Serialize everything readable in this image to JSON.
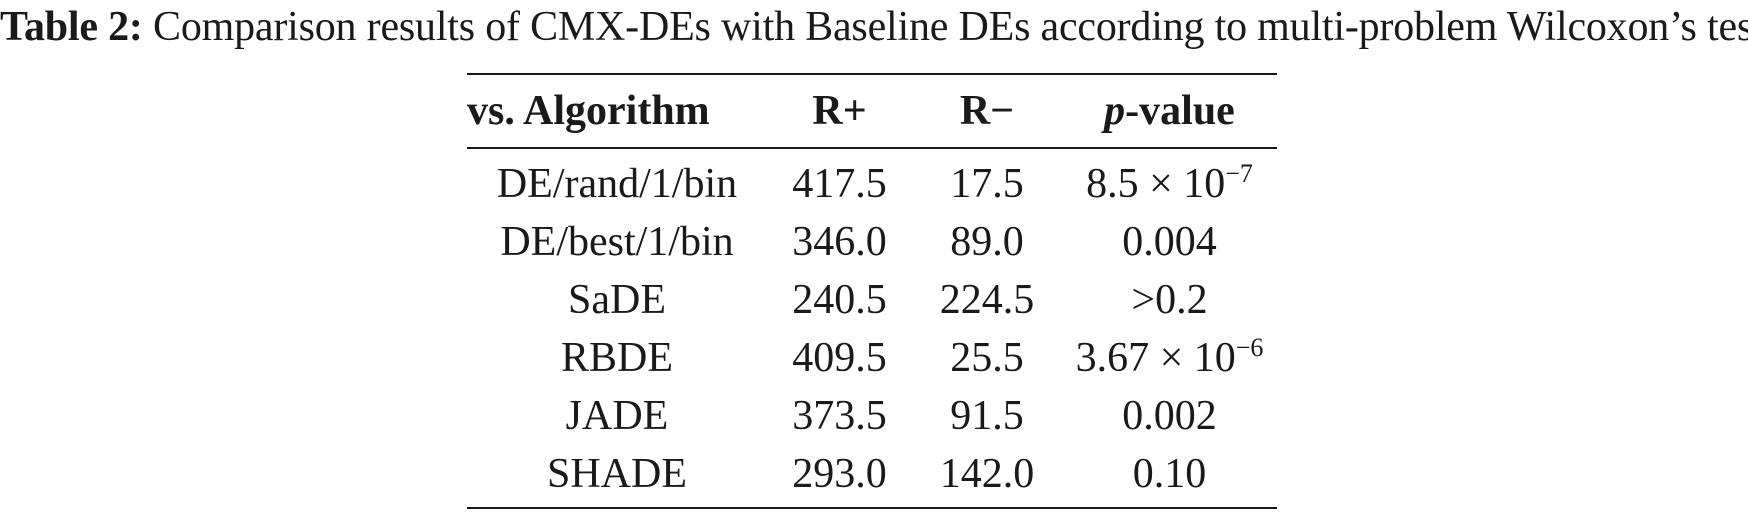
{
  "caption": {
    "label": "Table 2:",
    "text": "Comparison results of CMX-DEs with Baseline DEs according to multi-problem Wilcoxon’s test"
  },
  "table": {
    "headers": {
      "algorithm": "vs. Algorithm",
      "r_plus": "R+",
      "r_minus": "R−",
      "p_value_italic": "p",
      "p_value_rest": "-value"
    },
    "rows": [
      {
        "algorithm": "DE/rand/1/bin",
        "r_plus": "417.5",
        "r_minus": "17.5",
        "p_value": "8.5 × 10",
        "p_exp": "−7"
      },
      {
        "algorithm": "DE/best/1/bin",
        "r_plus": "346.0",
        "r_minus": "89.0",
        "p_value": "0.004",
        "p_exp": ""
      },
      {
        "algorithm": "SaDE",
        "r_plus": "240.5",
        "r_minus": "224.5",
        "p_value": ">0.2",
        "p_exp": ""
      },
      {
        "algorithm": "RBDE",
        "r_plus": "409.5",
        "r_minus": "25.5",
        "p_value": "3.67 × 10",
        "p_exp": "−6"
      },
      {
        "algorithm": "JADE",
        "r_plus": "373.5",
        "r_minus": "91.5",
        "p_value": "0.002",
        "p_exp": ""
      },
      {
        "algorithm": "SHADE",
        "r_plus": "293.0",
        "r_minus": "142.0",
        "p_value": "0.10",
        "p_exp": ""
      }
    ]
  }
}
